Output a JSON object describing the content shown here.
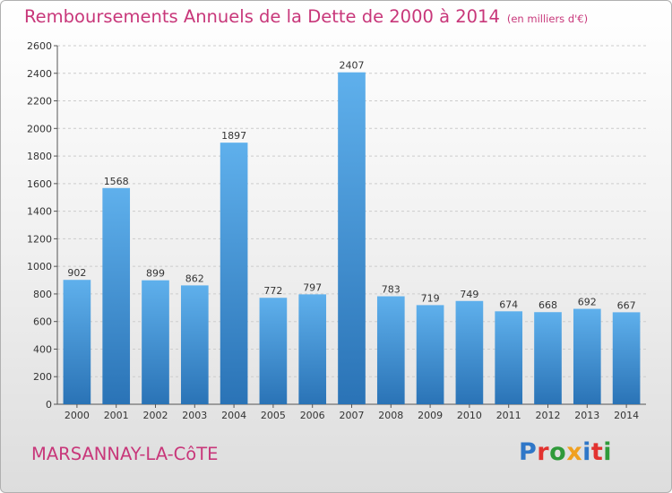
{
  "header": {
    "title": "Remboursements Annuels de la Dette de 2000 à 2014",
    "subtitle": "(en milliers d'€)"
  },
  "footer": {
    "place": "MARSANNAY-LA-CôTE",
    "logo": "Proxiti"
  },
  "colors": {
    "title": "#c8377a",
    "bar_light": "#5fb0ec",
    "bar_dark": "#2a73b6",
    "grid": "#cccccc"
  },
  "chart_data": {
    "type": "bar",
    "title": "Remboursements Annuels de la Dette de 2000 à 2014",
    "subtitle": "(en milliers d'€)",
    "xlabel": "",
    "ylabel": "",
    "categories": [
      "2000",
      "2001",
      "2002",
      "2003",
      "2004",
      "2005",
      "2006",
      "2007",
      "2008",
      "2009",
      "2010",
      "2011",
      "2012",
      "2013",
      "2014"
    ],
    "values": [
      902,
      1568,
      899,
      862,
      1897,
      772,
      797,
      2407,
      783,
      719,
      749,
      674,
      668,
      692,
      667
    ],
    "ylim": [
      0,
      2600
    ],
    "yticks": [
      0,
      200,
      400,
      600,
      800,
      1000,
      1200,
      1400,
      1600,
      1800,
      2000,
      2200,
      2400,
      2600
    ],
    "grid": true,
    "legend": "none"
  }
}
